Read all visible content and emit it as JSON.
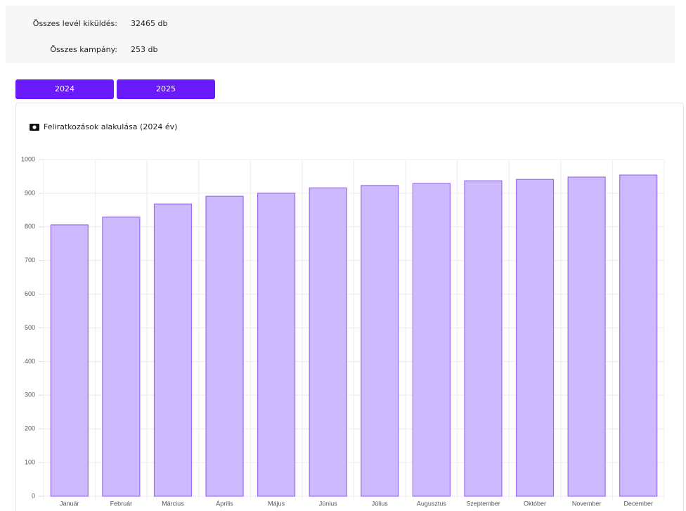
{
  "stats": [
    {
      "label": "Összes levél kiküldés:",
      "value": "32465 db"
    },
    {
      "label": "Összes kampány:",
      "value": "253 db"
    }
  ],
  "tabs": [
    "2024",
    "2025"
  ],
  "chart_data": {
    "type": "bar",
    "title": "Feliratkozások alakulása (2024 év)",
    "categories": [
      "Január",
      "Február",
      "Március",
      "Április",
      "Május",
      "Június",
      "Július",
      "Augusztus",
      "Szeptember",
      "Október",
      "November",
      "December"
    ],
    "values": [
      806,
      829,
      868,
      891,
      900,
      916,
      923,
      929,
      937,
      941,
      948,
      954
    ],
    "color": "#cdb9fd",
    "border_color": "#9b6cf6",
    "ylim": [
      0,
      1000
    ],
    "yticks": [
      0,
      100,
      200,
      300,
      400,
      500,
      600,
      700,
      800,
      900,
      1000
    ],
    "grid": true
  }
}
